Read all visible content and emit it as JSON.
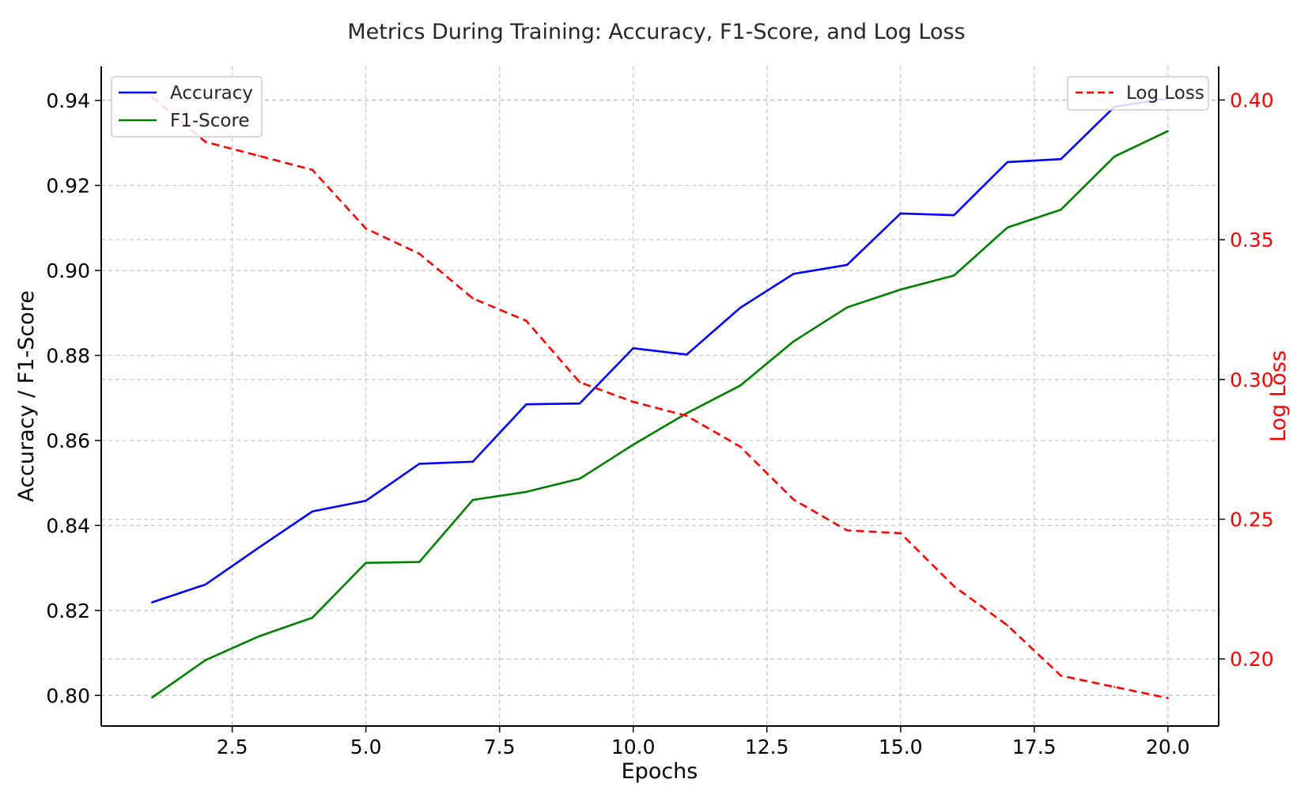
{
  "chart_data": {
    "type": "line",
    "title": "Metrics During Training: Accuracy, F1-Score, and Log Loss",
    "xlabel": "Epochs",
    "ylabel": "Accuracy / F1-Score",
    "ylabel_right": "Log Loss",
    "x": [
      1,
      2,
      3,
      4,
      5,
      6,
      7,
      8,
      9,
      10,
      11,
      12,
      13,
      14,
      15,
      16,
      17,
      18,
      19,
      20
    ],
    "xlim": [
      0.05,
      20.95
    ],
    "ylim": [
      0.7928,
      0.948
    ],
    "ylim_right": [
      0.176,
      0.412
    ],
    "xticks": [
      "2.5",
      "5.0",
      "7.5",
      "10.0",
      "12.5",
      "15.0",
      "17.5",
      "20.0"
    ],
    "yticks": [
      "0.80",
      "0.82",
      "0.84",
      "0.86",
      "0.88",
      "0.90",
      "0.92",
      "0.94"
    ],
    "yticks_right": [
      "0.20",
      "0.25",
      "0.30",
      "0.35",
      "0.40"
    ],
    "grid": true,
    "series": [
      {
        "name": "Accuracy",
        "axis": "left",
        "color": "#0000ff",
        "style": "solid",
        "values": [
          0.8219,
          0.8261,
          0.8348,
          0.8433,
          0.8458,
          0.8545,
          0.855,
          0.8685,
          0.8687,
          0.8817,
          0.8802,
          0.8912,
          0.8992,
          0.9013,
          0.9134,
          0.913,
          0.9255,
          0.9262,
          0.9385,
          0.9405
        ]
      },
      {
        "name": "F1-Score",
        "axis": "left",
        "color": "#008000",
        "style": "solid",
        "values": [
          0.7995,
          0.8083,
          0.8139,
          0.8183,
          0.8312,
          0.8314,
          0.846,
          0.8479,
          0.851,
          0.859,
          0.8664,
          0.8729,
          0.8833,
          0.8913,
          0.8955,
          0.8988,
          0.9101,
          0.9143,
          0.9268,
          0.9328
        ]
      },
      {
        "name": "Log Loss",
        "axis": "right",
        "color": "#ff0000",
        "style": "dashed",
        "values": [
          0.401,
          0.385,
          0.38,
          0.375,
          0.354,
          0.345,
          0.329,
          0.321,
          0.299,
          0.292,
          0.287,
          0.276,
          0.257,
          0.246,
          0.245,
          0.226,
          0.212,
          0.194,
          0.19,
          0.186
        ]
      }
    ],
    "legend_left": "upper-left",
    "legend_right": "upper-right"
  }
}
